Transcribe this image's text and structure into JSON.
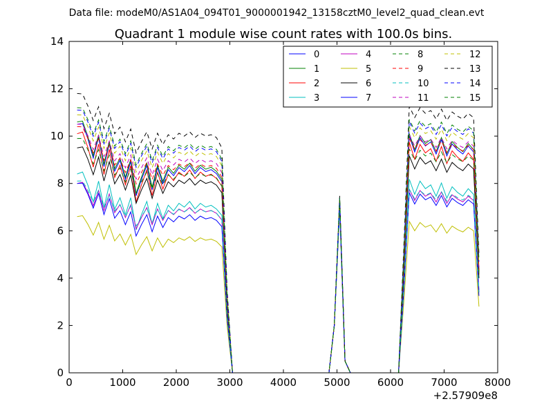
{
  "suptitle": "Data file: modeM0/AS1A04_094T01_9000001942_13158cztM0_level2_quad_clean.evt",
  "chart_data": {
    "type": "line",
    "title": "Quadrant 1 module wise count rates with 100.0s bins.",
    "xlabel": "",
    "ylabel": "",
    "x_offset_label": "+2.57909e8",
    "xlim": [
      0,
      8000
    ],
    "ylim": [
      0,
      14
    ],
    "xticks": [
      0,
      1000,
      2000,
      3000,
      4000,
      5000,
      6000,
      7000,
      8000
    ],
    "yticks": [
      0,
      2,
      4,
      6,
      8,
      10,
      12,
      14
    ],
    "grid": false,
    "legend": {
      "placement": "top-right",
      "columns": 4
    },
    "x": [
      150,
      250,
      350,
      450,
      550,
      650,
      750,
      850,
      950,
      1050,
      1150,
      1250,
      1350,
      1450,
      1550,
      1650,
      1750,
      1850,
      1950,
      2050,
      2150,
      2250,
      2350,
      2450,
      2550,
      2650,
      2750,
      2850,
      2950,
      3050,
      3150,
      3250,
      3350,
      3450,
      3550,
      3650,
      3750,
      3850,
      3950,
      4050,
      4150,
      4250,
      4350,
      4450,
      4550,
      4650,
      4750,
      4850,
      4950,
      5050,
      5150,
      5250,
      5350,
      5450,
      5550,
      5650,
      5750,
      5850,
      5950,
      6050,
      6150,
      6250,
      6350,
      6450,
      6550,
      6650,
      6750,
      6850,
      6950,
      7050,
      7150,
      7250,
      7350,
      7450,
      7550,
      7650
    ],
    "segments": [
      {
        "from": 0,
        "to": 28
      },
      {
        "from": 29,
        "to": 46
      },
      {
        "from": 47,
        "to": 51
      },
      {
        "from": 52,
        "to": 60
      },
      {
        "from": 61,
        "to": 75
      }
    ],
    "series": [
      {
        "name": "0",
        "color": "#0000ff",
        "dash": "solid",
        "base": 8.5,
        "amp": 0.85,
        "off": 2.0,
        "pk": 0.82
      },
      {
        "name": "1",
        "color": "#008000",
        "dash": "solid",
        "base": 8.6,
        "amp": 0.85,
        "off": 2.0,
        "pk": 0.84
      },
      {
        "name": "2",
        "color": "#ff0000",
        "dash": "solid",
        "base": 8.3,
        "amp": 0.9,
        "off": 1.8,
        "pk": 0.82
      },
      {
        "name": "3",
        "color": "#00bfbf",
        "dash": "solid",
        "base": 7.0,
        "amp": 0.8,
        "off": 1.4,
        "pk": 0.8
      },
      {
        "name": "4",
        "color": "#bf00bf",
        "dash": "solid",
        "base": 6.8,
        "amp": 0.6,
        "off": 1.2,
        "pk": 0.8
      },
      {
        "name": "5",
        "color": "#bfbf00",
        "dash": "solid",
        "base": 5.6,
        "amp": 0.5,
        "off": 1.0,
        "pk": 0.8
      },
      {
        "name": "6",
        "color": "#000000",
        "dash": "solid",
        "base": 8.0,
        "amp": 0.7,
        "off": 1.5,
        "pk": 0.82
      },
      {
        "name": "7",
        "color": "#0000ff",
        "dash": "solid",
        "base": 6.5,
        "amp": 0.6,
        "off": 1.5,
        "pk": 0.8
      },
      {
        "name": "8",
        "color": "#008000",
        "dash": "dashed",
        "base": 8.3,
        "amp": 0.6,
        "off": 1.6,
        "pk": 0.84
      },
      {
        "name": "9",
        "color": "#ff0000",
        "dash": "dashed",
        "base": 8.7,
        "amp": 0.6,
        "off": 1.7,
        "pk": 0.84
      },
      {
        "name": "10",
        "color": "#00bfbf",
        "dash": "dashed",
        "base": 6.8,
        "amp": 0.5,
        "off": 1.3,
        "pk": 0.8
      },
      {
        "name": "11",
        "color": "#bf00bf",
        "dash": "dashed",
        "base": 8.9,
        "amp": 0.6,
        "off": 1.6,
        "pk": 0.84
      },
      {
        "name": "12",
        "color": "#bfbf00",
        "dash": "dashed",
        "base": 9.2,
        "amp": 0.6,
        "off": 1.7,
        "pk": 0.84
      },
      {
        "name": "13",
        "color": "#000000",
        "dash": "dashed",
        "base": 10.0,
        "amp": 0.6,
        "off": 1.8,
        "pk": 0.86
      },
      {
        "name": "14",
        "color": "#0000ff",
        "dash": "dashed",
        "base": 9.4,
        "amp": 0.6,
        "off": 1.7,
        "pk": 0.85
      },
      {
        "name": "15",
        "color": "#008000",
        "dash": "dashed",
        "base": 9.5,
        "amp": 0.6,
        "off": 1.7,
        "pk": 0.85
      }
    ]
  }
}
